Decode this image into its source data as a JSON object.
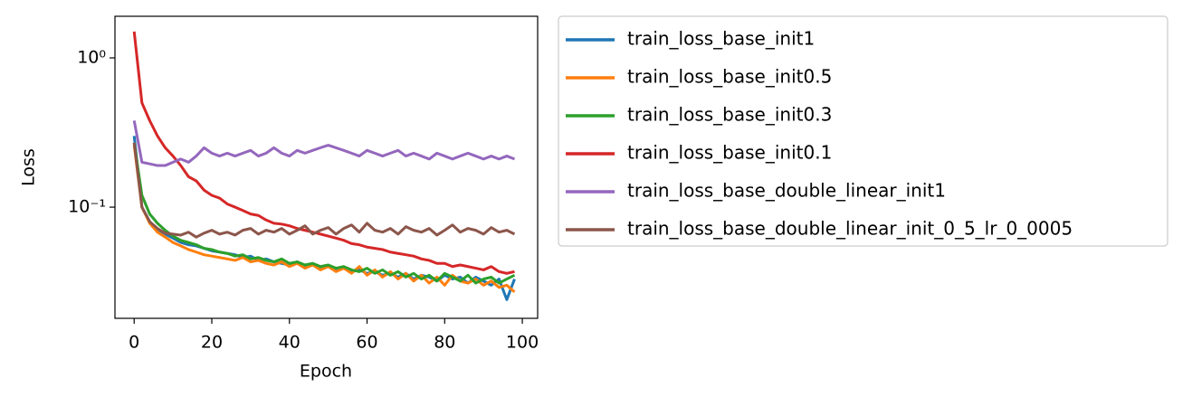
{
  "chart_data": {
    "type": "line",
    "xlabel": "Epoch",
    "ylabel": "Loss",
    "yscale": "log",
    "xlim": [
      -4.95,
      103.95
    ],
    "ylim": [
      0.018,
      1.9
    ],
    "xticks": [
      0,
      20,
      40,
      60,
      80,
      100
    ],
    "yticks": [
      {
        "value": 1,
        "label": "10⁰"
      },
      {
        "value": 0.1,
        "label": "10⁻¹"
      }
    ],
    "grid": false,
    "legend": "outside right",
    "x": [
      0,
      2,
      4,
      6,
      8,
      10,
      12,
      14,
      16,
      18,
      20,
      22,
      24,
      26,
      28,
      30,
      32,
      34,
      36,
      38,
      40,
      42,
      44,
      46,
      48,
      50,
      52,
      54,
      56,
      58,
      60,
      62,
      64,
      66,
      68,
      70,
      72,
      74,
      76,
      78,
      80,
      82,
      84,
      86,
      88,
      90,
      92,
      94,
      96,
      98
    ],
    "series": [
      {
        "name": "train_loss_base_init1",
        "color": "#1f77b4",
        "values": [
          0.3,
          0.1,
          0.08,
          0.07,
          0.066,
          0.062,
          0.058,
          0.056,
          0.055,
          0.053,
          0.051,
          0.05,
          0.049,
          0.048,
          0.046,
          0.047,
          0.044,
          0.045,
          0.043,
          0.042,
          0.041,
          0.043,
          0.04,
          0.041,
          0.039,
          0.04,
          0.038,
          0.039,
          0.037,
          0.038,
          0.036,
          0.037,
          0.035,
          0.036,
          0.034,
          0.036,
          0.033,
          0.035,
          0.034,
          0.032,
          0.035,
          0.033,
          0.034,
          0.031,
          0.034,
          0.032,
          0.03,
          0.033,
          0.024,
          0.033
        ]
      },
      {
        "name": "train_loss_base_init0.5",
        "color": "#ff7f0e",
        "values": [
          0.26,
          0.1,
          0.078,
          0.068,
          0.063,
          0.058,
          0.055,
          0.052,
          0.05,
          0.048,
          0.047,
          0.046,
          0.045,
          0.044,
          0.046,
          0.043,
          0.044,
          0.042,
          0.041,
          0.043,
          0.04,
          0.042,
          0.039,
          0.041,
          0.038,
          0.04,
          0.037,
          0.039,
          0.036,
          0.04,
          0.035,
          0.038,
          0.034,
          0.037,
          0.033,
          0.036,
          0.032,
          0.035,
          0.031,
          0.034,
          0.03,
          0.035,
          0.032,
          0.031,
          0.033,
          0.03,
          0.032,
          0.029,
          0.03,
          0.027
        ]
      },
      {
        "name": "train_loss_base_init0.3",
        "color": "#2ca02c",
        "values": [
          0.27,
          0.12,
          0.09,
          0.078,
          0.07,
          0.064,
          0.06,
          0.058,
          0.056,
          0.053,
          0.052,
          0.05,
          0.049,
          0.047,
          0.048,
          0.045,
          0.046,
          0.044,
          0.043,
          0.045,
          0.042,
          0.043,
          0.041,
          0.042,
          0.04,
          0.041,
          0.039,
          0.04,
          0.038,
          0.037,
          0.039,
          0.036,
          0.038,
          0.035,
          0.037,
          0.034,
          0.036,
          0.033,
          0.035,
          0.032,
          0.036,
          0.034,
          0.032,
          0.035,
          0.031,
          0.033,
          0.034,
          0.031,
          0.033,
          0.035
        ]
      },
      {
        "name": "train_loss_base_init0.1",
        "color": "#d62728",
        "values": [
          1.5,
          0.5,
          0.38,
          0.3,
          0.25,
          0.22,
          0.19,
          0.16,
          0.15,
          0.13,
          0.12,
          0.115,
          0.105,
          0.1,
          0.095,
          0.09,
          0.088,
          0.082,
          0.078,
          0.077,
          0.075,
          0.072,
          0.07,
          0.068,
          0.066,
          0.064,
          0.062,
          0.06,
          0.057,
          0.056,
          0.054,
          0.053,
          0.052,
          0.05,
          0.049,
          0.048,
          0.047,
          0.045,
          0.044,
          0.042,
          0.042,
          0.04,
          0.041,
          0.04,
          0.039,
          0.038,
          0.04,
          0.037,
          0.036,
          0.037
        ]
      },
      {
        "name": "train_loss_base_double_linear_init1",
        "color": "#9467bd",
        "values": [
          0.38,
          0.2,
          0.195,
          0.19,
          0.19,
          0.2,
          0.21,
          0.2,
          0.22,
          0.25,
          0.23,
          0.22,
          0.23,
          0.22,
          0.23,
          0.24,
          0.22,
          0.23,
          0.25,
          0.23,
          0.22,
          0.24,
          0.23,
          0.24,
          0.25,
          0.26,
          0.25,
          0.24,
          0.23,
          0.22,
          0.24,
          0.23,
          0.22,
          0.23,
          0.24,
          0.22,
          0.23,
          0.22,
          0.21,
          0.23,
          0.22,
          0.21,
          0.22,
          0.23,
          0.22,
          0.21,
          0.22,
          0.21,
          0.22,
          0.21
        ]
      },
      {
        "name": "train_loss_base_double_linear_init_0_5_lr_0_0005",
        "color": "#8c564b",
        "values": [
          0.27,
          0.1,
          0.08,
          0.072,
          0.067,
          0.066,
          0.065,
          0.068,
          0.063,
          0.067,
          0.07,
          0.066,
          0.068,
          0.065,
          0.07,
          0.072,
          0.066,
          0.07,
          0.068,
          0.072,
          0.066,
          0.07,
          0.075,
          0.066,
          0.07,
          0.073,
          0.066,
          0.072,
          0.076,
          0.068,
          0.078,
          0.07,
          0.068,
          0.072,
          0.066,
          0.074,
          0.07,
          0.068,
          0.072,
          0.065,
          0.07,
          0.076,
          0.068,
          0.072,
          0.07,
          0.066,
          0.073,
          0.068,
          0.07,
          0.066
        ]
      }
    ]
  }
}
